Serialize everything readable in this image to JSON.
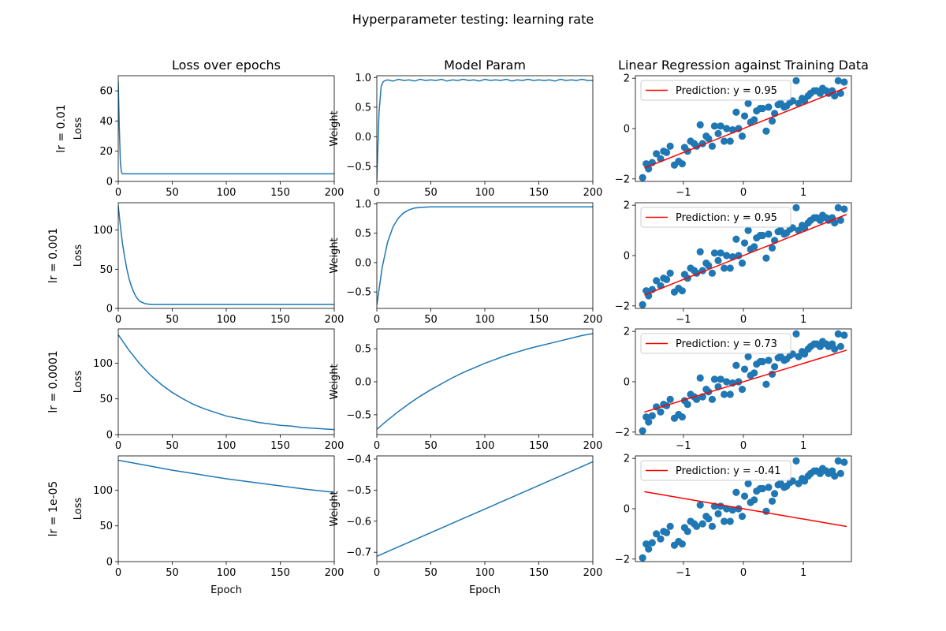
{
  "figure": {
    "title": "Hyperparameter testing: learning rate",
    "column_titles": [
      "Loss over epochs",
      "Model Param",
      "Linear Regression against Training Data"
    ],
    "row_labels": [
      "lr = 0.01",
      "lr = 0.001",
      "lr = 0.0001",
      "lr = 1e-05"
    ],
    "loss_ylabel": "Loss",
    "weight_ylabel": "Weight",
    "xlabel": "Epoch",
    "line_color": "#1f77b4",
    "scatter_color": "#1f77b4",
    "prediction_color": "#ff0000"
  },
  "chart_data": [
    {
      "type": "line",
      "row": 0,
      "col": 0,
      "series": "loss",
      "ylabel": "Loss",
      "xlim": [
        0,
        200
      ],
      "ylim": [
        0,
        70
      ],
      "xticks": [
        0,
        50,
        100,
        150,
        200
      ],
      "yticks": [
        0,
        20,
        40,
        60
      ],
      "x": [
        0,
        1,
        2,
        3,
        4,
        6,
        10,
        20,
        50,
        100,
        150,
        200
      ],
      "values": [
        66,
        35,
        12,
        6,
        5,
        5,
        5,
        5,
        5,
        5,
        5,
        5
      ]
    },
    {
      "type": "line",
      "row": 0,
      "col": 1,
      "series": "weight",
      "ylabel": "Weight",
      "xlim": [
        0,
        200
      ],
      "ylim": [
        -0.75,
        1.03
      ],
      "xticks": [
        0,
        50,
        100,
        150,
        200
      ],
      "yticks": [
        -0.5,
        0.0,
        0.5,
        1.0
      ],
      "x": [
        0,
        2,
        4,
        6,
        8,
        10,
        15,
        20,
        25,
        30,
        35,
        40,
        45,
        50,
        55,
        60,
        65,
        70,
        75,
        80,
        85,
        90,
        95,
        100,
        105,
        110,
        115,
        120,
        125,
        130,
        135,
        140,
        145,
        150,
        155,
        160,
        165,
        170,
        175,
        180,
        185,
        190,
        195,
        200
      ],
      "values": [
        -0.72,
        0.4,
        0.85,
        0.93,
        0.95,
        0.96,
        0.94,
        0.97,
        0.95,
        0.96,
        0.94,
        0.97,
        0.95,
        0.96,
        0.95,
        0.97,
        0.94,
        0.96,
        0.95,
        0.97,
        0.95,
        0.96,
        0.94,
        0.97,
        0.95,
        0.96,
        0.95,
        0.97,
        0.94,
        0.96,
        0.95,
        0.97,
        0.95,
        0.96,
        0.95,
        0.96,
        0.94,
        0.97,
        0.95,
        0.96,
        0.95,
        0.97,
        0.95,
        0.95
      ]
    },
    {
      "type": "scatter",
      "row": 0,
      "col": 2,
      "legend": "Prediction: y =  0.95",
      "slope": 0.95,
      "xlim": [
        -1.8,
        1.8
      ],
      "ylim": [
        -2.1,
        2.1
      ],
      "xticks": [
        -1,
        0,
        1
      ],
      "yticks": [
        -2,
        0,
        2
      ]
    },
    {
      "type": "line",
      "row": 1,
      "col": 0,
      "series": "loss",
      "ylabel": "Loss",
      "xlim": [
        0,
        200
      ],
      "ylim": [
        0,
        135
      ],
      "xticks": [
        0,
        50,
        100,
        150,
        200
      ],
      "yticks": [
        0,
        50,
        100
      ],
      "x": [
        0,
        2,
        4,
        6,
        8,
        10,
        12,
        14,
        16,
        18,
        20,
        25,
        30,
        40,
        50,
        100,
        150,
        200
      ],
      "values": [
        131,
        105,
        82,
        65,
        50,
        38,
        29,
        22,
        16,
        12,
        9,
        6,
        5,
        5,
        5,
        5,
        5,
        5
      ]
    },
    {
      "type": "line",
      "row": 1,
      "col": 1,
      "series": "weight",
      "ylabel": "Weight",
      "xlim": [
        0,
        200
      ],
      "ylim": [
        -0.78,
        1.02
      ],
      "xticks": [
        0,
        50,
        100,
        150,
        200
      ],
      "yticks": [
        -0.5,
        0.0,
        0.5,
        1.0
      ],
      "x": [
        0,
        5,
        10,
        15,
        20,
        25,
        30,
        35,
        40,
        45,
        50,
        60,
        70,
        80,
        100,
        150,
        200
      ],
      "values": [
        -0.72,
        -0.08,
        0.35,
        0.61,
        0.76,
        0.85,
        0.9,
        0.93,
        0.94,
        0.945,
        0.95,
        0.95,
        0.95,
        0.95,
        0.95,
        0.95,
        0.95
      ]
    },
    {
      "type": "scatter",
      "row": 1,
      "col": 2,
      "legend": "Prediction: y =  0.95",
      "slope": 0.95,
      "xlim": [
        -1.8,
        1.8
      ],
      "ylim": [
        -2.1,
        2.1
      ],
      "xticks": [
        -1,
        0,
        1
      ],
      "yticks": [
        -2,
        0,
        2
      ]
    },
    {
      "type": "line",
      "row": 2,
      "col": 0,
      "series": "loss",
      "ylabel": "Loss",
      "xlim": [
        0,
        200
      ],
      "ylim": [
        0,
        148
      ],
      "xticks": [
        0,
        50,
        100,
        150,
        200
      ],
      "yticks": [
        0,
        50,
        100
      ],
      "x": [
        0,
        10,
        20,
        30,
        40,
        50,
        60,
        70,
        80,
        90,
        100,
        110,
        120,
        130,
        140,
        150,
        160,
        170,
        180,
        190,
        200
      ],
      "values": [
        140,
        118,
        99,
        83,
        70,
        59,
        50,
        42,
        36,
        31,
        26,
        23,
        20,
        17,
        15,
        13,
        12,
        10,
        9,
        8,
        7
      ]
    },
    {
      "type": "line",
      "row": 2,
      "col": 1,
      "series": "weight",
      "ylabel": "Weight",
      "xlim": [
        0,
        200
      ],
      "ylim": [
        -0.8,
        0.8
      ],
      "xticks": [
        0,
        50,
        100,
        150,
        200
      ],
      "yticks": [
        -0.5,
        0.0,
        0.5
      ],
      "x": [
        0,
        10,
        20,
        30,
        40,
        50,
        60,
        70,
        80,
        90,
        100,
        110,
        120,
        130,
        140,
        150,
        160,
        170,
        180,
        190,
        200
      ],
      "values": [
        -0.72,
        -0.58,
        -0.45,
        -0.33,
        -0.22,
        -0.12,
        -0.03,
        0.06,
        0.14,
        0.21,
        0.28,
        0.34,
        0.4,
        0.45,
        0.5,
        0.54,
        0.58,
        0.62,
        0.66,
        0.7,
        0.73
      ]
    },
    {
      "type": "scatter",
      "row": 2,
      "col": 2,
      "legend": "Prediction: y =  0.73",
      "slope": 0.73,
      "xlim": [
        -1.8,
        1.8
      ],
      "ylim": [
        -2.1,
        2.1
      ],
      "xticks": [
        -1,
        0,
        1
      ],
      "yticks": [
        -2,
        0,
        2
      ]
    },
    {
      "type": "line",
      "row": 3,
      "col": 0,
      "series": "loss",
      "ylabel": "Loss",
      "xlim": [
        0,
        200
      ],
      "ylim": [
        0,
        148
      ],
      "xticks": [
        0,
        50,
        100,
        150,
        200
      ],
      "yticks": [
        0,
        50,
        100
      ],
      "x": [
        0,
        25,
        50,
        75,
        100,
        125,
        150,
        175,
        200
      ],
      "values": [
        142,
        135,
        128,
        122,
        116,
        111,
        106,
        101,
        97
      ]
    },
    {
      "type": "line",
      "row": 3,
      "col": 1,
      "series": "weight",
      "ylabel": "Weight",
      "xlim": [
        0,
        200
      ],
      "ylim": [
        -0.73,
        -0.39
      ],
      "xticks": [
        0,
        50,
        100,
        150,
        200
      ],
      "yticks": [
        -0.7,
        -0.6,
        -0.5,
        -0.4
      ],
      "x": [
        0,
        25,
        50,
        75,
        100,
        125,
        150,
        175,
        200
      ],
      "values": [
        -0.713,
        -0.675,
        -0.637,
        -0.599,
        -0.561,
        -0.523,
        -0.485,
        -0.447,
        -0.409
      ]
    },
    {
      "type": "scatter",
      "row": 3,
      "col": 2,
      "legend": "Prediction: y = -0.41",
      "slope": -0.41,
      "xlim": [
        -1.8,
        1.8
      ],
      "ylim": [
        -2.1,
        2.1
      ],
      "xticks": [
        -1,
        0,
        1
      ],
      "yticks": [
        -2,
        0,
        2
      ]
    }
  ],
  "training_data": {
    "x": [
      -1.68,
      -1.62,
      -1.58,
      -1.52,
      -1.45,
      -1.38,
      -1.33,
      -1.28,
      -1.22,
      -1.15,
      -1.08,
      -1.02,
      -0.98,
      -0.93,
      -0.88,
      -0.82,
      -0.78,
      -0.72,
      -0.68,
      -0.62,
      -0.58,
      -0.52,
      -0.48,
      -0.42,
      -0.38,
      -0.32,
      -0.28,
      -0.22,
      -0.18,
      -0.12,
      -0.08,
      -0.02,
      0.02,
      0.08,
      0.12,
      0.18,
      0.22,
      0.28,
      0.32,
      0.38,
      0.42,
      0.48,
      0.52,
      0.58,
      0.62,
      0.68,
      0.72,
      0.78,
      0.82,
      0.88,
      0.92,
      0.98,
      1.02,
      1.08,
      1.12,
      1.18,
      1.22,
      1.28,
      1.32,
      1.38,
      1.42,
      1.48,
      1.52,
      1.58,
      1.62,
      1.68
    ],
    "y": [
      -1.95,
      -1.4,
      -1.6,
      -1.35,
      -1.0,
      -1.2,
      -0.9,
      -0.95,
      -0.7,
      -1.45,
      -1.3,
      -1.4,
      -0.75,
      -0.9,
      -0.5,
      -0.6,
      -0.7,
      0.15,
      -0.6,
      -0.3,
      -0.4,
      -0.7,
      0.1,
      -0.2,
      0.1,
      -0.5,
      0.0,
      -0.5,
      -0.05,
      0.65,
      0.0,
      -0.3,
      0.5,
      1.0,
      0.25,
      0.35,
      0.7,
      0.8,
      0.8,
      -0.1,
      0.85,
      0.3,
      0.6,
      0.95,
      1.0,
      0.85,
      0.9,
      1.05,
      1.1,
      1.9,
      1.0,
      1.2,
      1.1,
      1.3,
      1.4,
      1.5,
      1.5,
      1.4,
      1.6,
      1.5,
      1.4,
      1.5,
      1.3,
      1.9,
      1.4,
      1.85
    ]
  }
}
